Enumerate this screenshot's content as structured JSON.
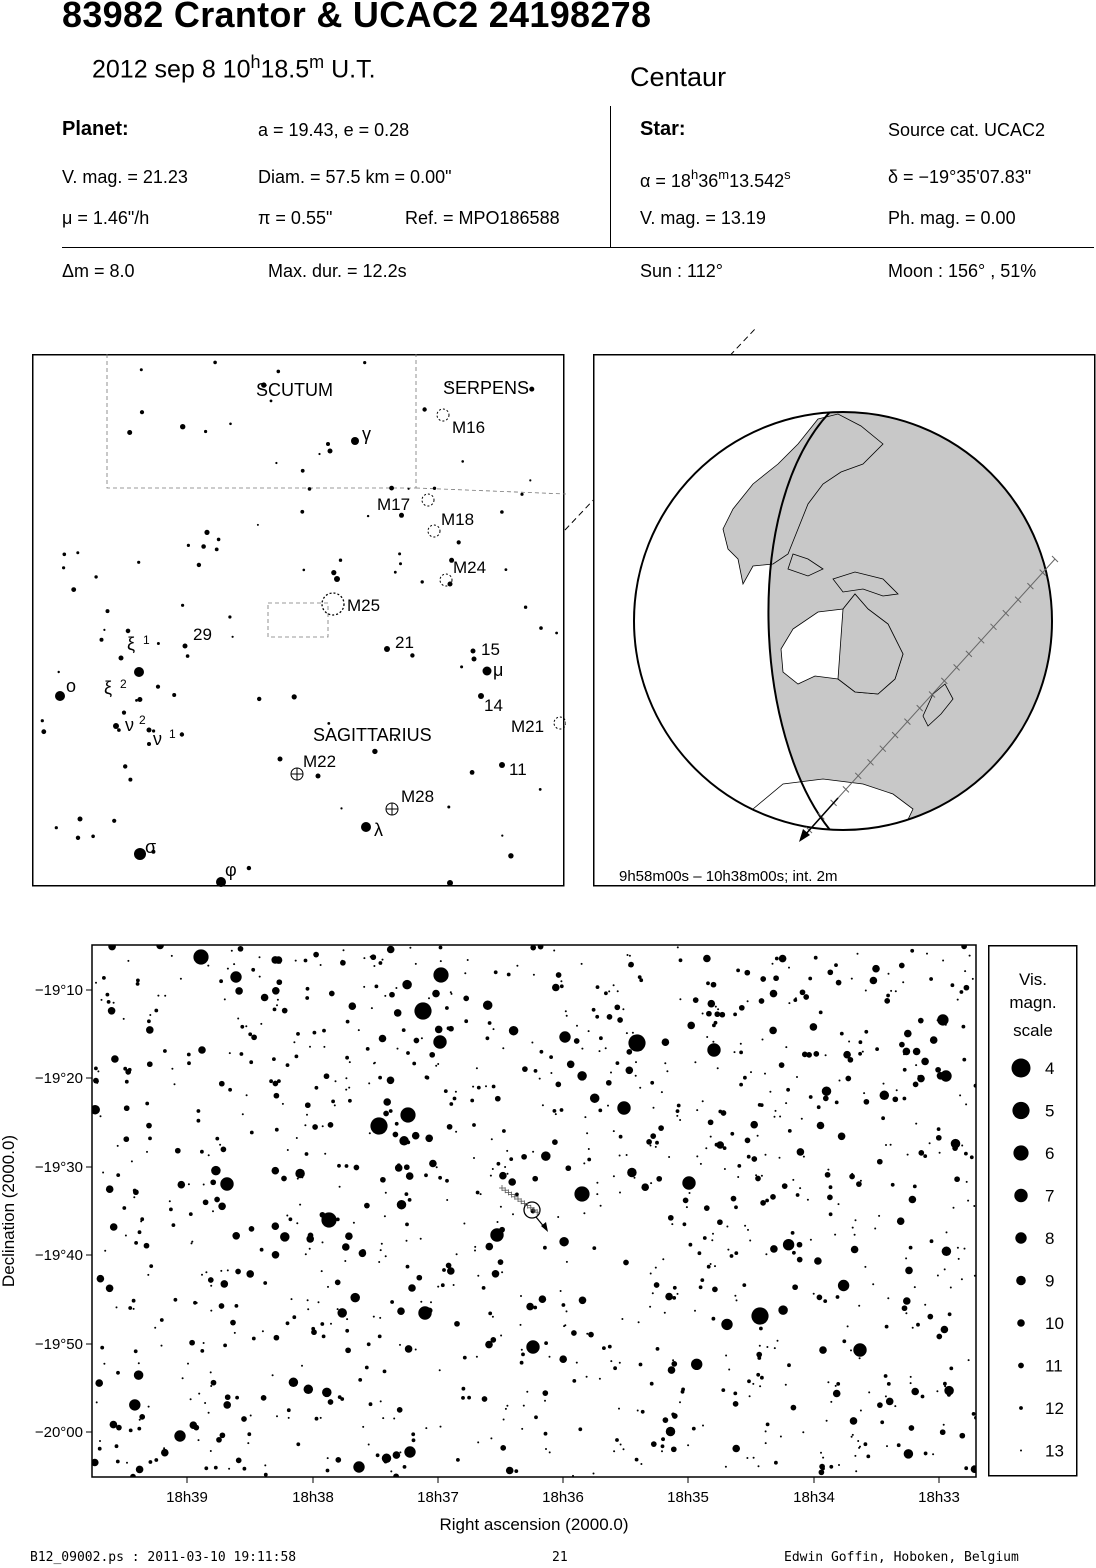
{
  "header": {
    "title": "83982 Crantor  &  UCAC2 24198278",
    "date": "2012 sep  8  10",
    "h": "h",
    "min": "18.5",
    "m": "m",
    "ut": " U.T.",
    "type": "Centaur"
  },
  "planet": {
    "label": "Planet:",
    "orbit": "a = 19.43, e = 0.28",
    "vmag": "V. mag. = 21.23",
    "diam": "Diam. = 57.5 km = 0.00\"",
    "mu": "μ =  1.46\"/h",
    "pi": "π =  0.55\"",
    "ref": "Ref. = MPO186588"
  },
  "star": {
    "label": "Star:",
    "source": "Source cat.  UCAC2",
    "ra_prefix": "α = 18",
    "ra_h": "h",
    "ra_36": "36",
    "ra_m": "m",
    "ra_sec": "13.542",
    "ra_s": "s",
    "dec": "δ = −19°35'07.83\"",
    "vmag": "V. mag. = 13.19",
    "phmag": "Ph. mag. =  0.00"
  },
  "event": {
    "dm": "Δm = 8.0",
    "maxdur": "Max. dur. = 12.2s",
    "sun": "Sun : 112°",
    "moon": "Moon : 156° , 51%"
  },
  "finder": {
    "constellations": [
      "SCUTUM",
      "SERPENS",
      "SAGITTARIUS"
    ],
    "objects": [
      "M16",
      "M17",
      "M18",
      "M24",
      "M25",
      "M21",
      "M22",
      "M28"
    ],
    "numbers": [
      "29",
      "21",
      "15",
      "14",
      "11"
    ],
    "greek": [
      "γ",
      "ξ",
      "1",
      "ξ",
      "2",
      "ο",
      "μ",
      "ν",
      "2",
      "ν",
      "1",
      "σ",
      "λ",
      "φ"
    ]
  },
  "globe": {
    "caption": "9h58m00s – 10h38m00s; int.  2m"
  },
  "chart_data": {
    "type": "scatter",
    "xlabel": "Right ascension (2000.0)",
    "ylabel": "Declination (2000.0)",
    "xticks": [
      "18h39",
      "18h38",
      "18h37",
      "18h36",
      "18h35",
      "18h34",
      "18h33"
    ],
    "yticks": [
      "−19°10",
      "−19°20",
      "−19°30",
      "−19°40",
      "−19°50",
      "−20°00"
    ],
    "bright_stars": [
      {
        "ra": "18h38m52s",
        "dec": "−19°06'",
        "mag": 6
      },
      {
        "ra": "18h37m04s",
        "dec": "−19°09'",
        "mag": 6
      },
      {
        "ra": "18h37m11s",
        "dec": "−19°12.5'",
        "mag": 5
      },
      {
        "ra": "18h35m48s",
        "dec": "−19°16'",
        "mag": 5
      },
      {
        "ra": "18h37m26s",
        "dec": "−19°24'",
        "mag": 7
      },
      {
        "ra": "18h37m36s",
        "dec": "−19°25'",
        "mag": 5
      },
      {
        "ra": "18h38m07s",
        "dec": "−19°36'",
        "mag": 6
      },
      {
        "ra": "18h35m52s",
        "dec": "−19°33'",
        "mag": 7
      },
      {
        "ra": "18h34m15s",
        "dec": "−19°47'",
        "mag": 5
      },
      {
        "ra": "18h33m38s",
        "dec": "−19°51'",
        "mag": 7
      },
      {
        "ra": "18h36m13s",
        "dec": "−19°51'",
        "mag": 8
      }
    ],
    "target_star": {
      "ra": "18h36m13.542s",
      "dec": "−19°35'07.83\""
    }
  },
  "legend": {
    "title": [
      "Vis.",
      "magn.",
      "scale"
    ],
    "mags": [
      "4",
      "5",
      "6",
      "7",
      "8",
      "9",
      "10",
      "11",
      "12",
      "13"
    ]
  },
  "footer": {
    "file": "B12_09002.ps : 2011-03-10 19:11:58",
    "page": "21",
    "author": "Edwin Goffin, Hoboken, Belgium"
  }
}
